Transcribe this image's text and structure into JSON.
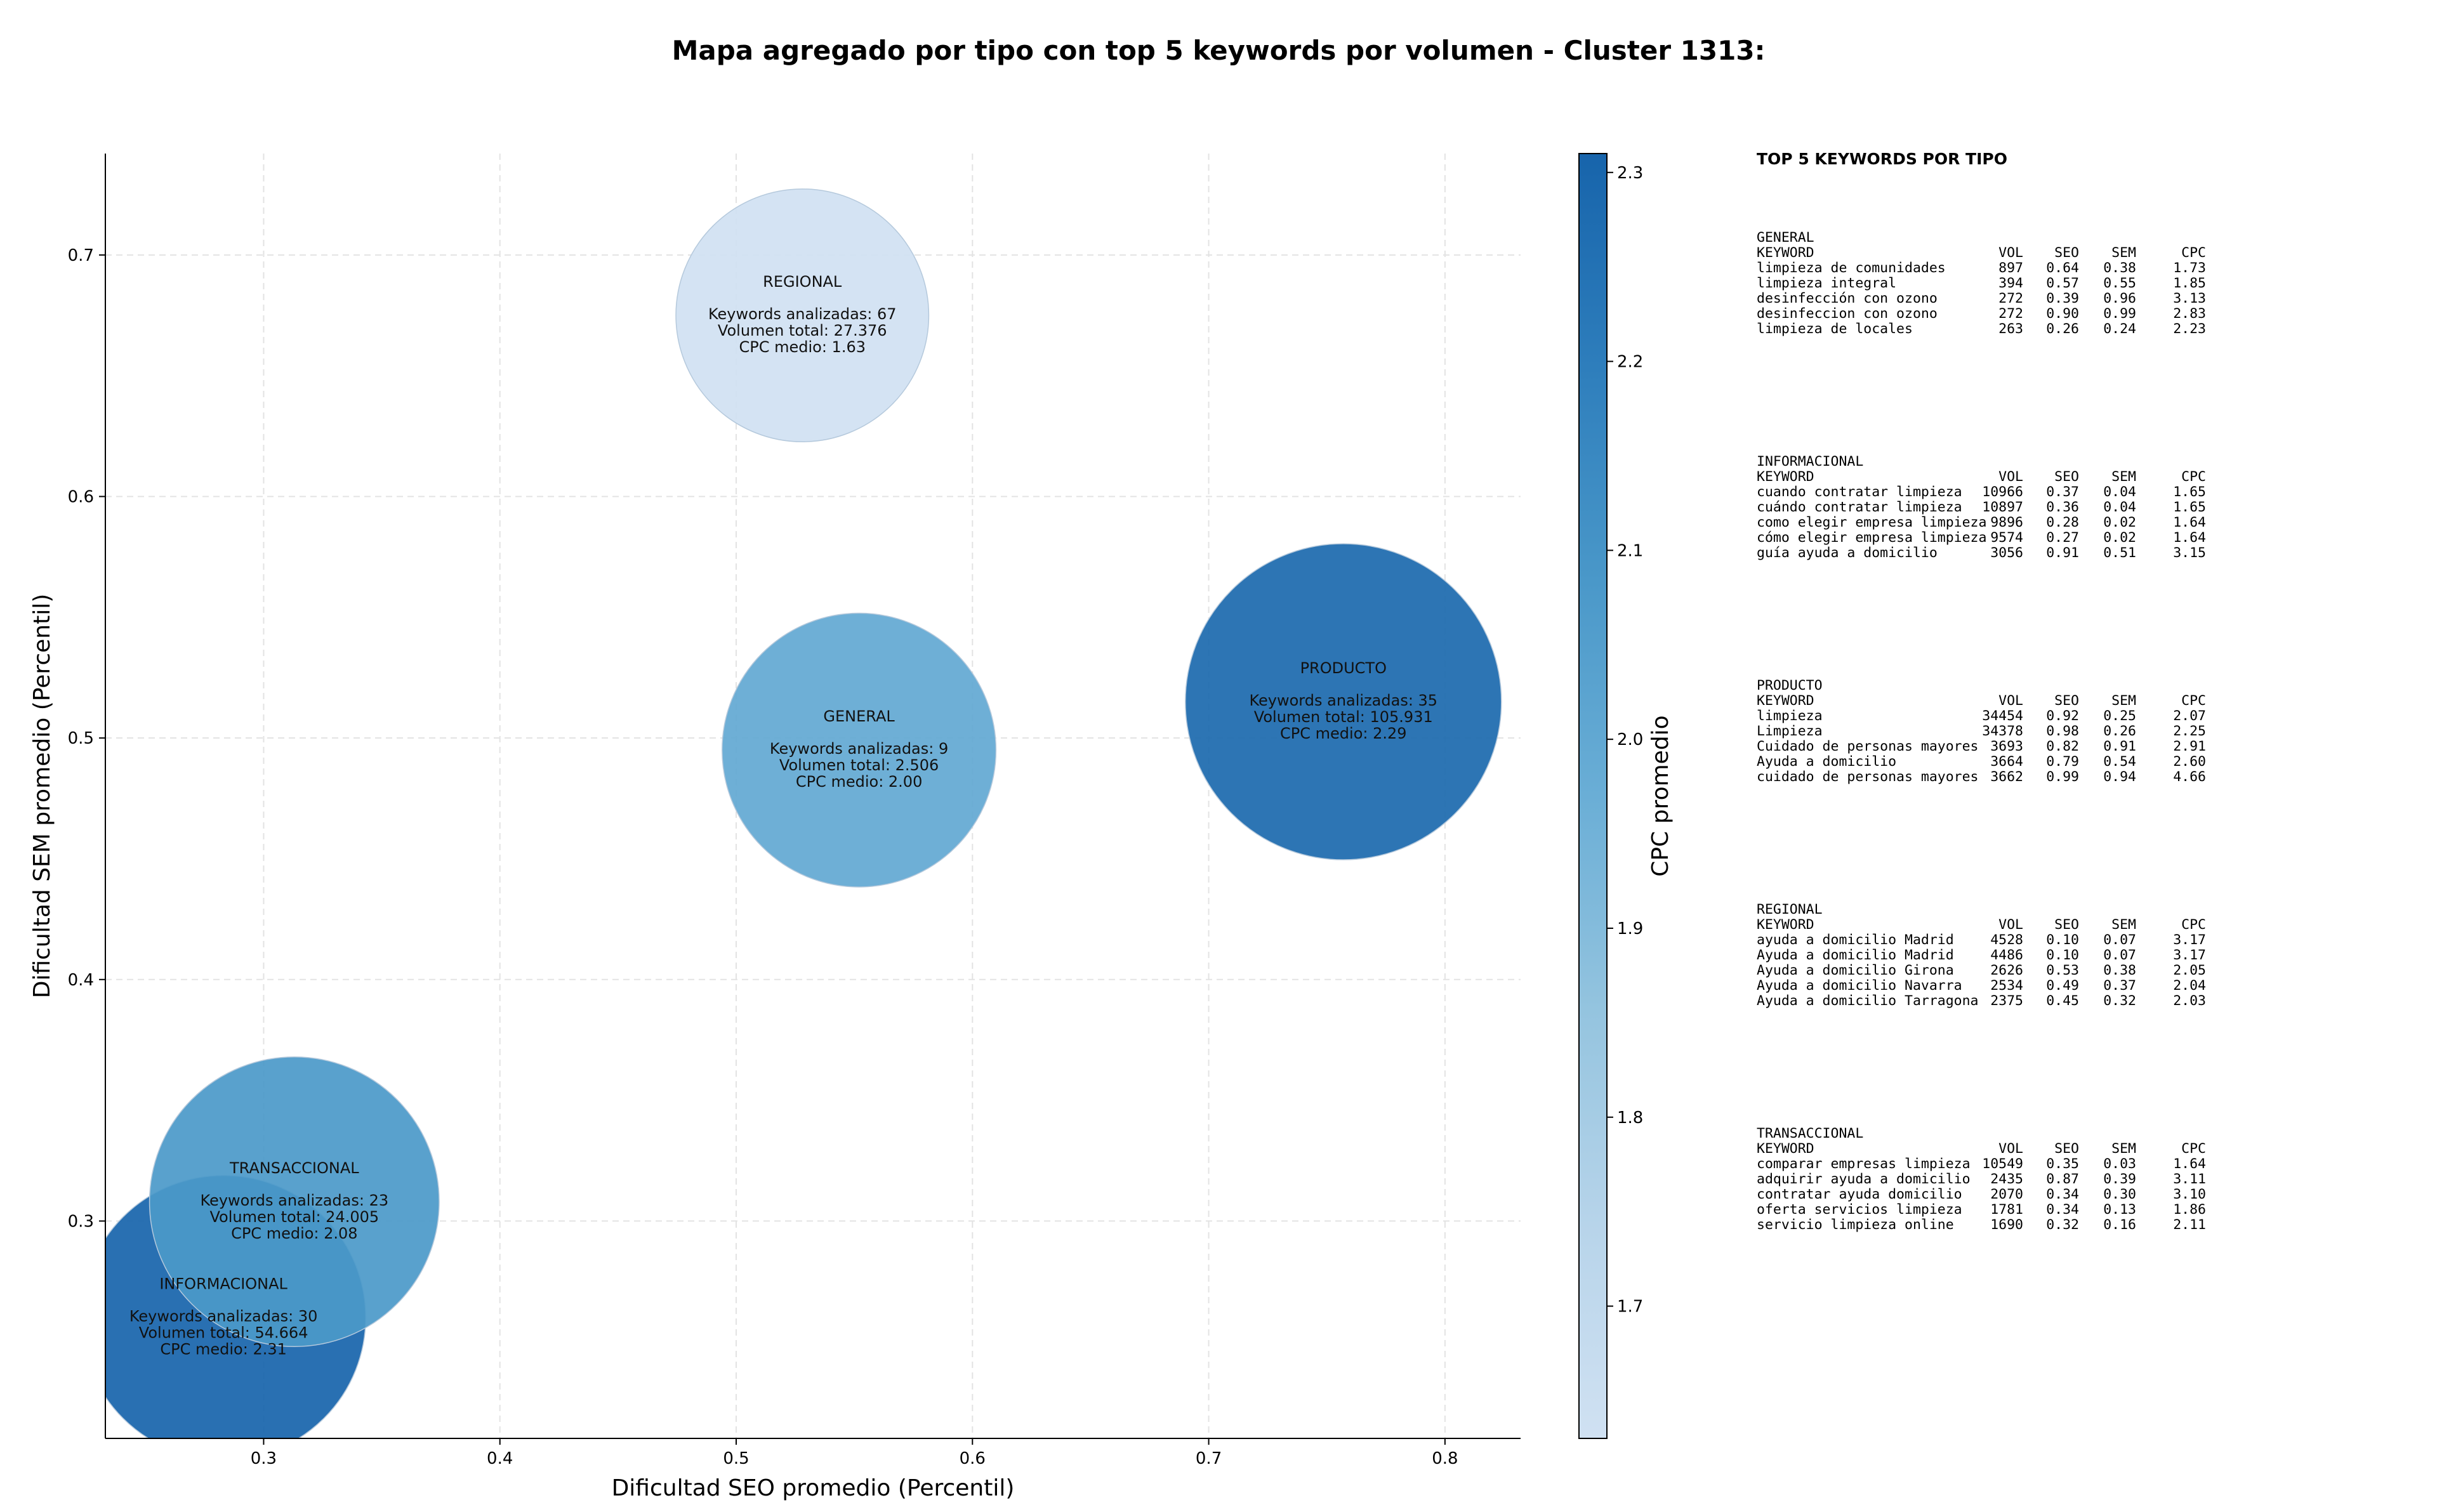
{
  "title": "Mapa agregado por tipo con top 5 keywords por volumen - Cluster 1313:",
  "chart_data": {
    "type": "scatter",
    "subtype": "bubble",
    "title": "Mapa agregado por tipo con top 5 keywords por volumen - Cluster 1313:",
    "xlabel": "Dificultad SEO promedio (Percentil)",
    "ylabel": "Dificultad SEM promedio (Percentil)",
    "xlim": [
      0.233,
      0.832
    ],
    "ylim": [
      0.21,
      0.742
    ],
    "xticks": [
      "0.3",
      "0.4",
      "0.5",
      "0.6",
      "0.7",
      "0.8"
    ],
    "yticks": [
      "0.3",
      "0.4",
      "0.5",
      "0.6",
      "0.7"
    ],
    "xtick_values": [
      0.3,
      0.4,
      0.5,
      0.6,
      0.7,
      0.8
    ],
    "ytick_values": [
      0.3,
      0.4,
      0.5,
      0.6,
      0.7
    ],
    "grid": true,
    "colorbar": {
      "label": "CPC promedio",
      "min": 1.63,
      "max": 2.31,
      "ticks": [
        "1.7",
        "1.8",
        "1.9",
        "2.0",
        "2.1",
        "2.2",
        "2.3"
      ],
      "tick_values": [
        1.7,
        1.8,
        1.9,
        2.0,
        2.1,
        2.2,
        2.3
      ],
      "colormap": [
        "#d0e1f2",
        "#b7d4ea",
        "#94c4df",
        "#6aaed6",
        "#4a98c9",
        "#2e7ebc",
        "#1764ab"
      ]
    },
    "bubbles": [
      {
        "label": "REGIONAL",
        "x": 0.528,
        "y": 0.675,
        "cpc": 1.63,
        "radius_scale": 0.48,
        "lines": [
          "Keywords analizadas: 67",
          "Volumen total: 27.376",
          "CPC medio: 1.63"
        ]
      },
      {
        "label": "GENERAL",
        "x": 0.552,
        "y": 0.495,
        "cpc": 2.0,
        "radius_scale": 0.52,
        "lines": [
          "Keywords analizadas: 9",
          "Volumen total: 2.506",
          "CPC medio: 2.00"
        ]
      },
      {
        "label": "PRODUCTO",
        "x": 0.757,
        "y": 0.515,
        "cpc": 2.29,
        "radius_scale": 0.6,
        "lines": [
          "Keywords analizadas: 35",
          "Volumen total: 105.931",
          "CPC medio: 2.29"
        ]
      },
      {
        "label": "INFORMACIONAL",
        "x": 0.283,
        "y": 0.26,
        "cpc": 2.31,
        "radius_scale": 0.54,
        "lines": [
          "Keywords analizadas: 30",
          "Volumen total: 54.664",
          "CPC medio: 2.31"
        ]
      },
      {
        "label": "TRANSACCIONAL",
        "x": 0.313,
        "y": 0.308,
        "cpc": 2.08,
        "radius_scale": 0.55,
        "lines": [
          "Keywords analizadas: 23",
          "Volumen total: 24.005",
          "CPC medio: 2.08"
        ]
      }
    ]
  },
  "panel": {
    "title": "TOP 5 KEYWORDS POR TIPO",
    "headers": {
      "keyword": "KEYWORD",
      "vol": "VOL",
      "seo": "SEO",
      "sem": "SEM",
      "cpc": "CPC"
    },
    "sections": [
      {
        "type": "GENERAL",
        "rows": [
          {
            "keyword": "limpieza de comunidades",
            "vol": "897",
            "seo": "0.64",
            "sem": "0.38",
            "cpc": "1.73"
          },
          {
            "keyword": "limpieza integral",
            "vol": "394",
            "seo": "0.57",
            "sem": "0.55",
            "cpc": "1.85"
          },
          {
            "keyword": "desinfección con ozono",
            "vol": "272",
            "seo": "0.39",
            "sem": "0.96",
            "cpc": "3.13"
          },
          {
            "keyword": "desinfeccion con ozono",
            "vol": "272",
            "seo": "0.90",
            "sem": "0.99",
            "cpc": "2.83"
          },
          {
            "keyword": "limpieza de locales",
            "vol": "263",
            "seo": "0.26",
            "sem": "0.24",
            "cpc": "2.23"
          }
        ]
      },
      {
        "type": "INFORMACIONAL",
        "rows": [
          {
            "keyword": "cuando contratar limpieza",
            "vol": "10966",
            "seo": "0.37",
            "sem": "0.04",
            "cpc": "1.65"
          },
          {
            "keyword": "cuándo contratar limpieza",
            "vol": "10897",
            "seo": "0.36",
            "sem": "0.04",
            "cpc": "1.65"
          },
          {
            "keyword": "como elegir empresa limpieza",
            "vol": "9896",
            "seo": "0.28",
            "sem": "0.02",
            "cpc": "1.64"
          },
          {
            "keyword": "cómo elegir empresa limpieza",
            "vol": "9574",
            "seo": "0.27",
            "sem": "0.02",
            "cpc": "1.64"
          },
          {
            "keyword": "guía ayuda a domicilio",
            "vol": "3056",
            "seo": "0.91",
            "sem": "0.51",
            "cpc": "3.15"
          }
        ]
      },
      {
        "type": "PRODUCTO",
        "rows": [
          {
            "keyword": "limpieza",
            "vol": "34454",
            "seo": "0.92",
            "sem": "0.25",
            "cpc": "2.07"
          },
          {
            "keyword": "Limpieza",
            "vol": "34378",
            "seo": "0.98",
            "sem": "0.26",
            "cpc": "2.25"
          },
          {
            "keyword": "Cuidado de personas mayores",
            "vol": "3693",
            "seo": "0.82",
            "sem": "0.91",
            "cpc": "2.91"
          },
          {
            "keyword": "Ayuda a domicilio",
            "vol": "3664",
            "seo": "0.79",
            "sem": "0.54",
            "cpc": "2.60"
          },
          {
            "keyword": "cuidado de personas mayores",
            "vol": "3662",
            "seo": "0.99",
            "sem": "0.94",
            "cpc": "4.66"
          }
        ]
      },
      {
        "type": "REGIONAL",
        "rows": [
          {
            "keyword": "ayuda a domicilio Madrid",
            "vol": "4528",
            "seo": "0.10",
            "sem": "0.07",
            "cpc": "3.17"
          },
          {
            "keyword": "Ayuda a domicilio Madrid",
            "vol": "4486",
            "seo": "0.10",
            "sem": "0.07",
            "cpc": "3.17"
          },
          {
            "keyword": "Ayuda a domicilio Girona",
            "vol": "2626",
            "seo": "0.53",
            "sem": "0.38",
            "cpc": "2.05"
          },
          {
            "keyword": "Ayuda a domicilio Navarra",
            "vol": "2534",
            "seo": "0.49",
            "sem": "0.37",
            "cpc": "2.04"
          },
          {
            "keyword": "Ayuda a domicilio Tarragona",
            "vol": "2375",
            "seo": "0.45",
            "sem": "0.32",
            "cpc": "2.03"
          }
        ]
      },
      {
        "type": "TRANSACCIONAL",
        "rows": [
          {
            "keyword": "comparar empresas limpieza",
            "vol": "10549",
            "seo": "0.35",
            "sem": "0.03",
            "cpc": "1.64"
          },
          {
            "keyword": "adquirir ayuda a domicilio",
            "vol": "2435",
            "seo": "0.87",
            "sem": "0.39",
            "cpc": "3.11"
          },
          {
            "keyword": "contratar ayuda domicilio",
            "vol": "2070",
            "seo": "0.34",
            "sem": "0.30",
            "cpc": "3.10"
          },
          {
            "keyword": "oferta servicios limpieza",
            "vol": "1781",
            "seo": "0.34",
            "sem": "0.13",
            "cpc": "1.86"
          },
          {
            "keyword": "servicio limpieza online",
            "vol": "1690",
            "seo": "0.32",
            "sem": "0.16",
            "cpc": "2.11"
          }
        ]
      }
    ]
  }
}
